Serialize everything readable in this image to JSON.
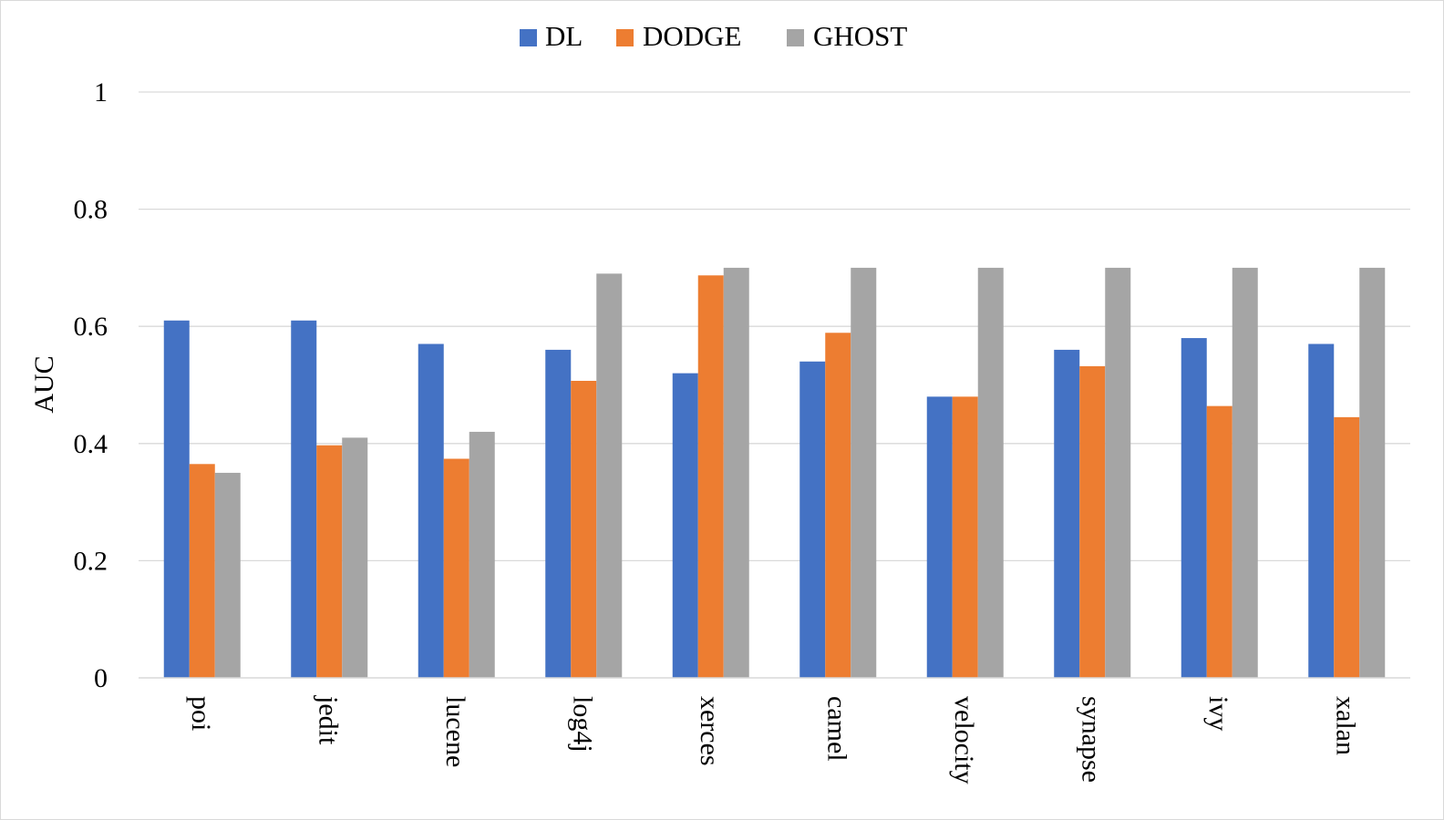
{
  "chart_data": {
    "type": "bar",
    "title": "",
    "xlabel": "",
    "ylabel": "AUC",
    "ylim": [
      0,
      1
    ],
    "yticks": [
      "0",
      "0.2",
      "0.4",
      "0.6",
      "0.8",
      "1"
    ],
    "grid": true,
    "legend_position": "top-center",
    "categories": [
      "poi",
      "jedit",
      "lucene",
      "log4j",
      "xerces",
      "camel",
      "velocity",
      "synapse",
      "ivy",
      "xalan"
    ],
    "series": [
      {
        "name": "DL",
        "color": "#4472c4",
        "values": [
          0.61,
          0.61,
          0.57,
          0.56,
          0.52,
          0.54,
          0.48,
          0.56,
          0.58,
          0.57
        ]
      },
      {
        "name": "DODGE",
        "color": "#ed7d31",
        "values": [
          0.365,
          0.397,
          0.374,
          0.507,
          0.687,
          0.589,
          0.48,
          0.532,
          0.464,
          0.445
        ]
      },
      {
        "name": "GHOST",
        "color": "#a5a5a5",
        "values": [
          0.35,
          0.41,
          0.42,
          0.69,
          0.7,
          0.7,
          0.7,
          0.7,
          0.7,
          0.7
        ]
      }
    ]
  }
}
